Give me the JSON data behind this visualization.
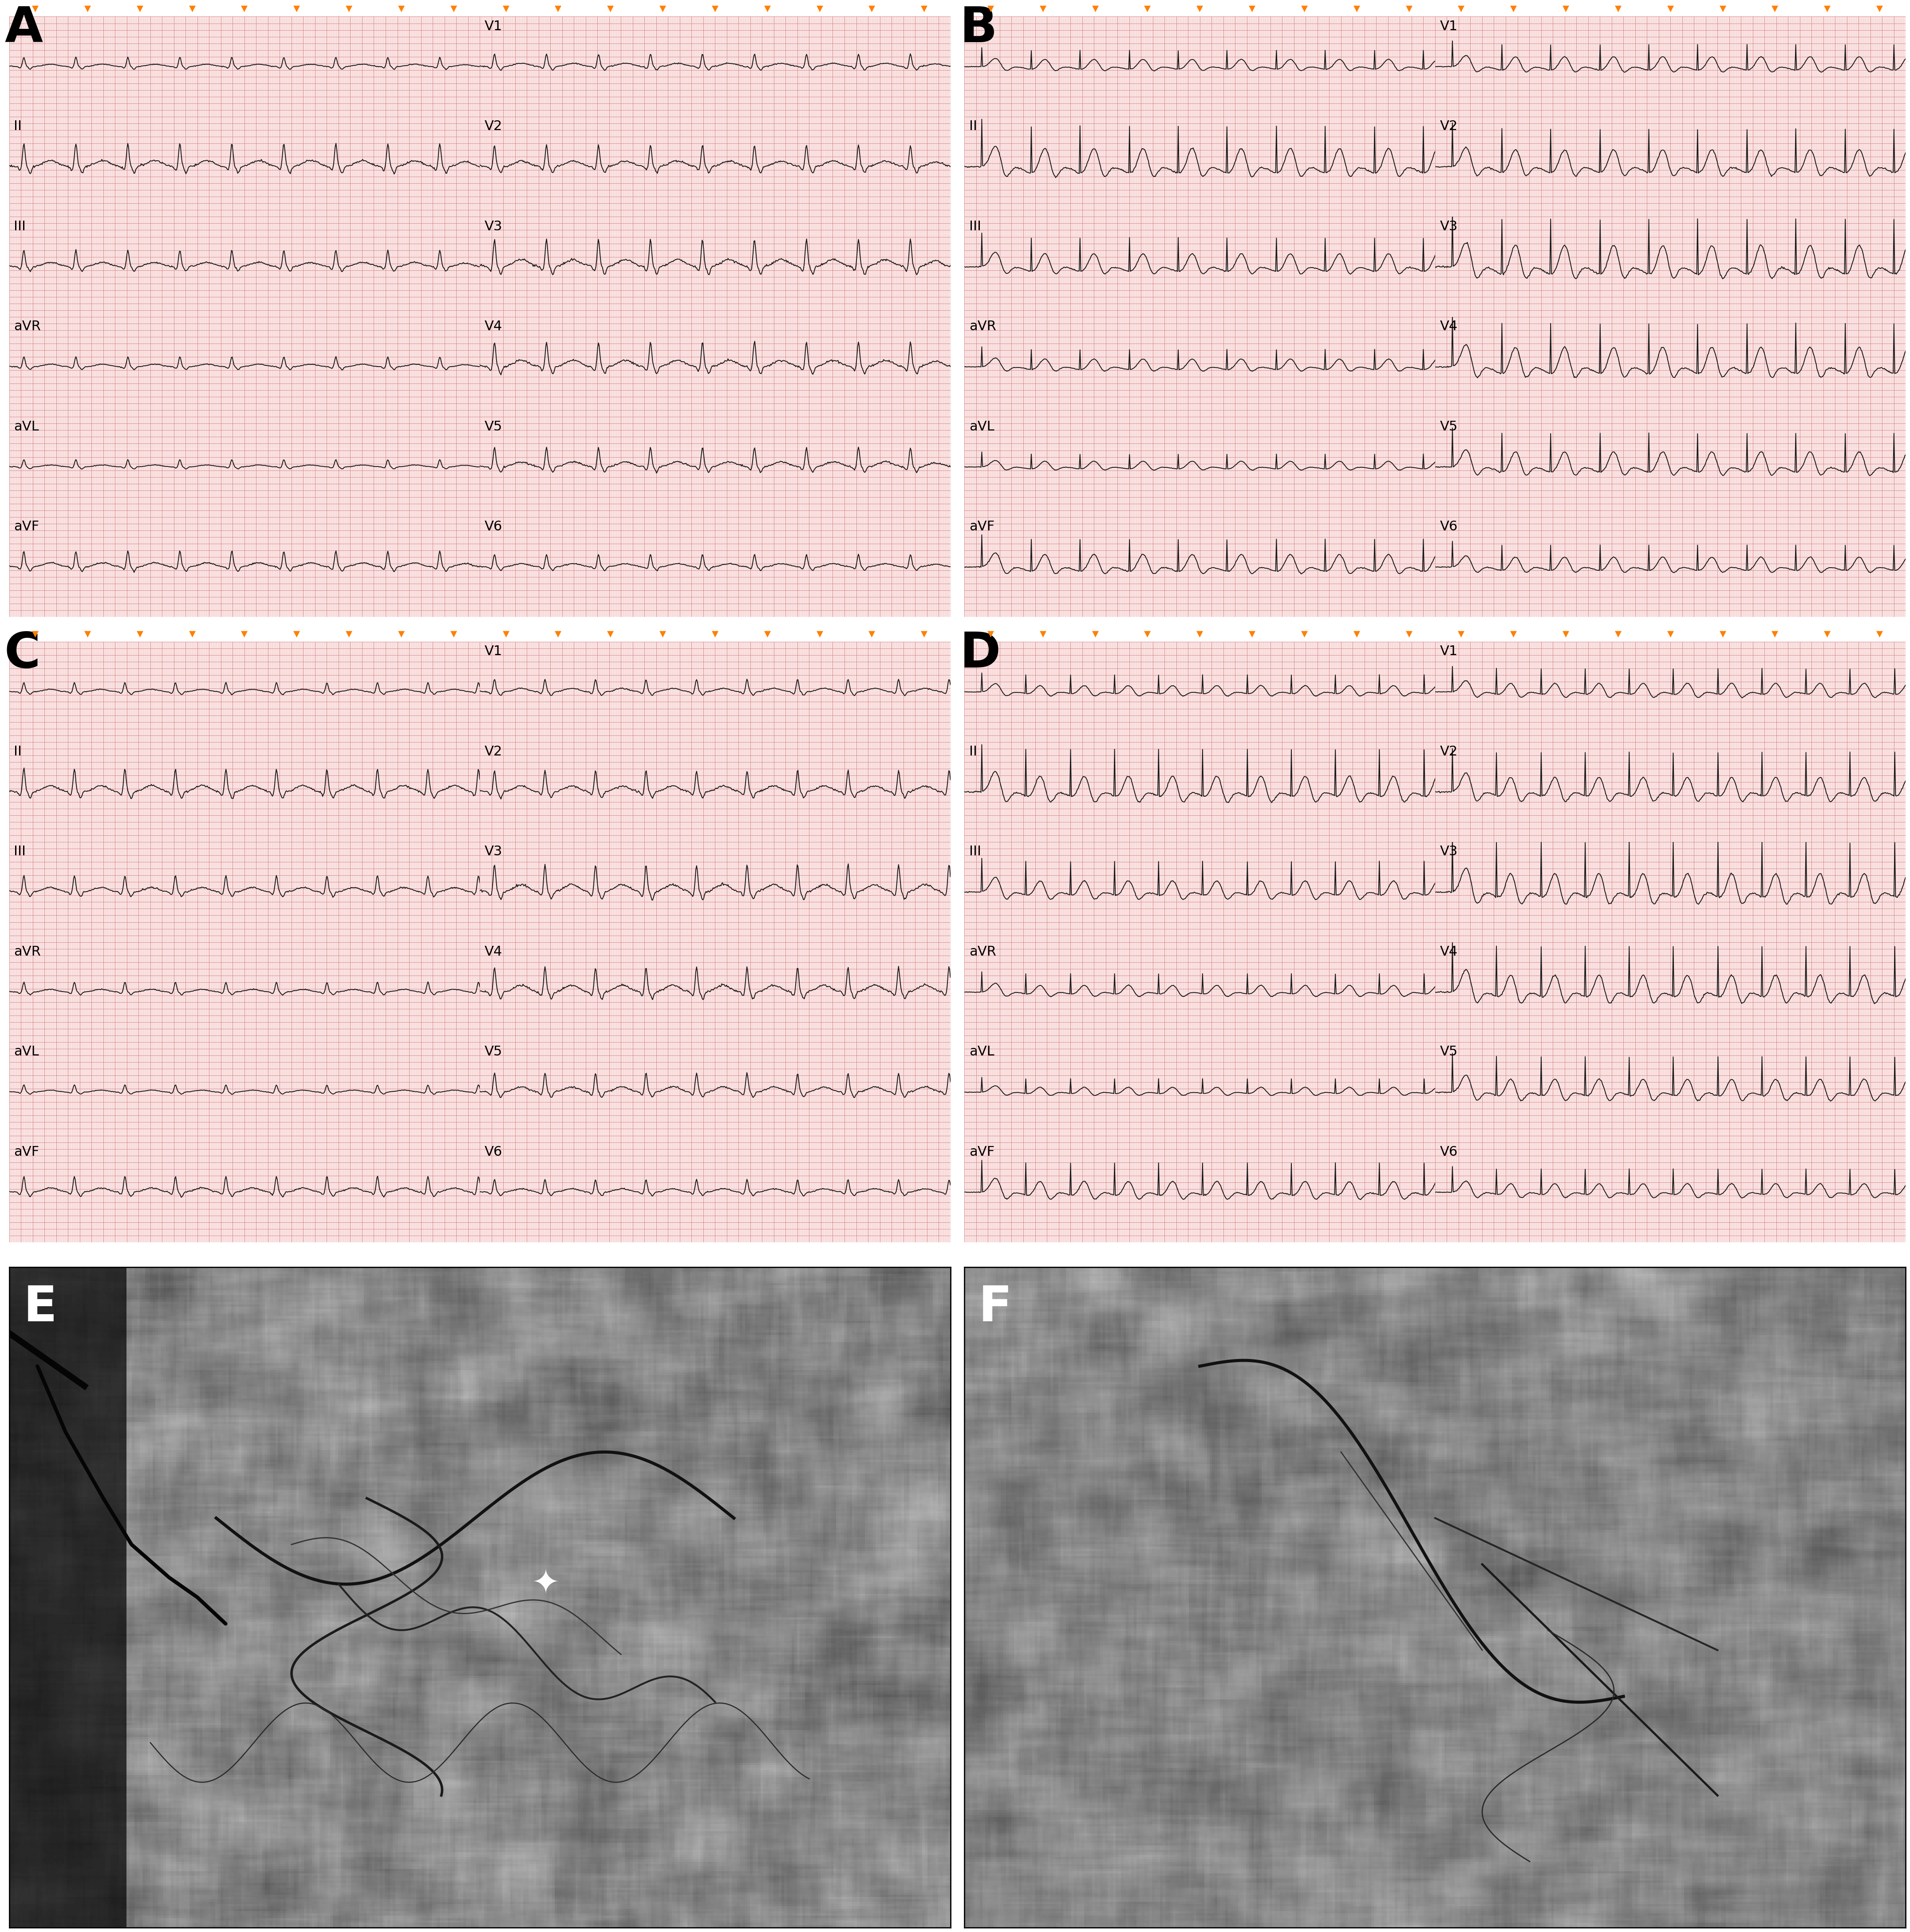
{
  "panel_labels": [
    "A",
    "B",
    "C",
    "D",
    "E",
    "F"
  ],
  "panel_label_color": "#000000",
  "panel_label_fontsize": 80,
  "ecg_background_color": "#fce8e8",
  "ecg_grid_major_color": "#d08080",
  "ecg_grid_minor_color": "#f0b8b8",
  "ecg_line_color": "#1a1a1a",
  "ecg_label_color": "#000000",
  "ecg_label_fontsize": 22,
  "orange_marker_color": "#FF8000",
  "border_color": "#000000",
  "figure_bg": "#ffffff",
  "star_color": "#ffffff"
}
